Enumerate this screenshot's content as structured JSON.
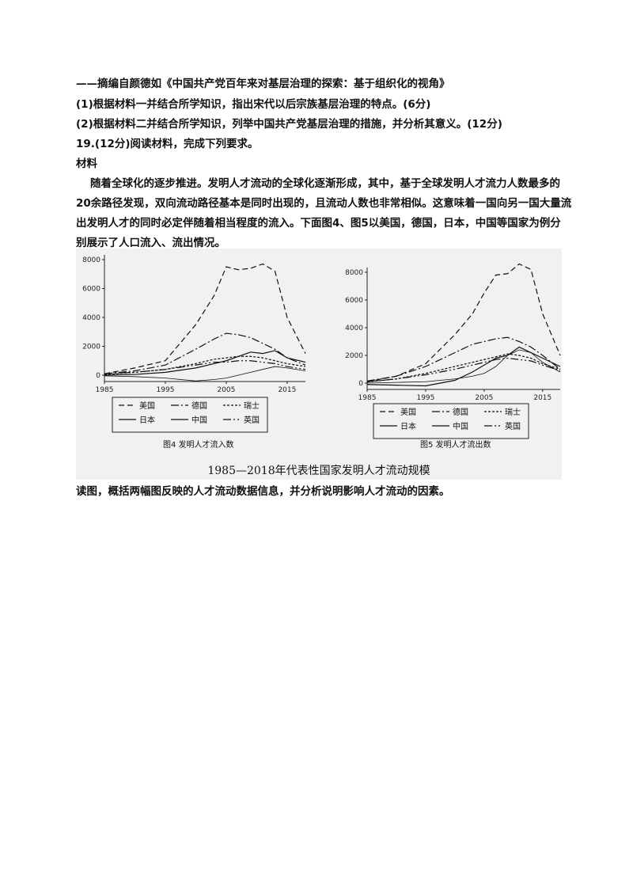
{
  "text": {
    "source_line": "——摘编自颜德如《中国共产党百年来对基层治理的探索：基于组织化的视角》",
    "q1": "(1)根据材料一并结合所学知识，指出宋代以后宗族基层治理的特点。(6分)",
    "q2": "(2)根据材料二并结合所学知识，列举中国共产党基层治理的措施，并分析其意义。(12分)",
    "q19": "19.(12分)阅读材料，完成下列要求。",
    "material_title": "材料",
    "material_line1": "随着全球化的逐步推进。发明人才流动的全球化逐渐形成，其中，基于全球发明人才流力人数最多的",
    "material_line2": "20余路径发现，双向流动路径基本是同时出现的，且流动人数也非常相似。这意味着一国向另一国大量流",
    "material_line3": "出发明人才的同时必定伴随着相当程度的流入。下面图4、图5以美国，德国，日本，中国等国家为例分",
    "material_line4": "别展示了人口流入、流出情况。",
    "figure_caption": "1985—2018年代表性国家发明人才流动规模",
    "question": "读图，概括两幅图反映的人才流动数据信息，并分析说明影响人才流动的因素。"
  },
  "chart_data": [
    {
      "type": "line",
      "title": "图4 发明人才流入数",
      "x": [
        1985,
        1990,
        1995,
        2000,
        2003,
        2005,
        2007,
        2009,
        2011,
        2013,
        2015,
        2018
      ],
      "ylim": [
        0,
        8000
      ],
      "yticks": [
        0,
        2000,
        4000,
        6000,
        8000
      ],
      "xticks": [
        1985,
        1995,
        2005,
        2015
      ],
      "series": [
        {
          "name": "美国",
          "dash": "7,4",
          "values": [
            100,
            500,
            1000,
            3500,
            5500,
            7500,
            7300,
            7400,
            7700,
            7200,
            4000,
            1500
          ]
        },
        {
          "name": "德国",
          "dash": "10,3,2,3",
          "values": [
            100,
            300,
            700,
            1800,
            2500,
            2900,
            2800,
            2600,
            2200,
            1800,
            1200,
            700
          ]
        },
        {
          "name": "瑞士",
          "dash": "3,2",
          "values": [
            50,
            200,
            400,
            800,
            1100,
            1200,
            1300,
            1300,
            1200,
            1000,
            800,
            600
          ]
        },
        {
          "name": "日本",
          "dash": "1,0",
          "values": [
            -50,
            -100,
            -200,
            -400,
            -300,
            -200,
            0,
            200,
            400,
            600,
            500,
            300
          ]
        },
        {
          "name": "中国",
          "dash": "",
          "values": [
            0,
            50,
            200,
            500,
            800,
            1000,
            1300,
            1600,
            1500,
            1700,
            1200,
            900
          ]
        },
        {
          "name": "英国",
          "dash": "10,3,2,3,2,3",
          "values": [
            100,
            200,
            400,
            700,
            900,
            900,
            1000,
            1000,
            900,
            800,
            600,
            400
          ]
        }
      ],
      "legend": [
        "美国",
        "德国",
        "瑞士",
        "日本",
        "中国",
        "英国"
      ]
    },
    {
      "type": "line",
      "title": "图5 发明人才流出数",
      "x": [
        1985,
        1990,
        1995,
        2000,
        2003,
        2005,
        2007,
        2009,
        2011,
        2013,
        2015,
        2018
      ],
      "ylim": [
        0,
        8000
      ],
      "yticks": [
        0,
        2000,
        4000,
        6000,
        8000
      ],
      "xticks": [
        1985,
        1995,
        2005,
        2015
      ],
      "series": [
        {
          "name": "美国",
          "dash": "7,4",
          "values": [
            100,
            500,
            1400,
            3500,
            5000,
            6500,
            7800,
            7900,
            8600,
            8200,
            5000,
            2000
          ]
        },
        {
          "name": "德国",
          "dash": "10,3,2,3",
          "values": [
            150,
            500,
            1200,
            2200,
            2800,
            3000,
            3200,
            3300,
            3000,
            2600,
            2000,
            1000
          ]
        },
        {
          "name": "瑞士",
          "dash": "3,2",
          "values": [
            80,
            300,
            700,
            1200,
            1500,
            1700,
            1900,
            2100,
            2000,
            1800,
            1400,
            1000
          ]
        },
        {
          "name": "日本",
          "dash": "1,0",
          "values": [
            0,
            50,
            100,
            300,
            500,
            700,
            1200,
            2000,
            2400,
            2200,
            1500,
            800
          ]
        },
        {
          "name": "中国",
          "dash": "",
          "values": [
            -100,
            -150,
            -200,
            200,
            800,
            1300,
            1800,
            2000,
            2600,
            2200,
            1800,
            1200
          ]
        },
        {
          "name": "英国",
          "dash": "10,3,2,3,2,3",
          "values": [
            100,
            300,
            600,
            1000,
            1300,
            1500,
            1700,
            1800,
            1700,
            1600,
            1300,
            900
          ]
        }
      ],
      "legend": [
        "美国",
        "德国",
        "瑞士",
        "日本",
        "中国",
        "英国"
      ]
    }
  ]
}
